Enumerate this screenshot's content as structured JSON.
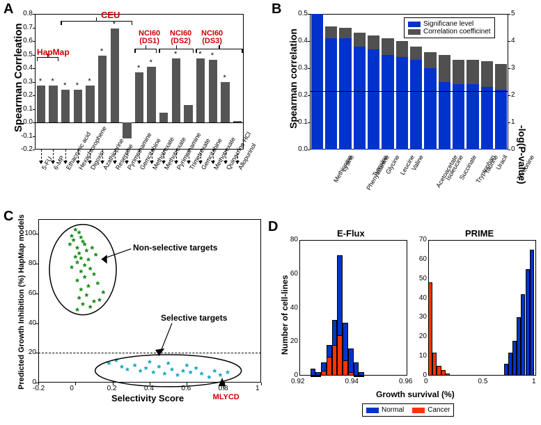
{
  "panels": {
    "A": "A",
    "B": "B",
    "C": "C",
    "D": "D"
  },
  "colors": {
    "gray_bar": "#555555",
    "blue": "#0033cc",
    "dark_gray": "#505050",
    "red_label": "#cc0000",
    "green_star": "#008000",
    "cyan_star": "#00a0c0",
    "orange_hist": "#ff3300"
  },
  "panelA": {
    "ylabel": "Spearman Corrleation",
    "ylim": [
      -0.2,
      0.8
    ],
    "yticks": [
      -0.2,
      -0.1,
      0,
      0.1,
      0.2,
      0.3,
      0.4,
      0.5,
      0.6,
      0.7,
      0.8
    ],
    "group_labels": {
      "HapMap": "HapMap",
      "CEU": "CEU",
      "DS1": "NCI60\n(DS1)",
      "DS2": "NCI60\n(DS2)",
      "DS3": "NCI60\n(DS3)"
    },
    "drugs": [
      "5-FU",
      "6-MP",
      "Ethacrynic acid",
      "Hexachlorophene",
      "Digoxin",
      "Azathioprine",
      "Reserpine",
      "Pyrimethamine",
      "Gemcitabine",
      "Methotrexate",
      "Methotrexate",
      "Pyrimethamine",
      "Trimetrexate",
      "Gemcitabine",
      "Methotrexate",
      "Quinacrine HCl",
      "Allopurinol"
    ],
    "values": [
      0.27,
      0.27,
      0.24,
      0.24,
      0.27,
      0.49,
      0.69,
      -0.12,
      0.37,
      0.41,
      0.07,
      0.47,
      0.13,
      0.47,
      0.46,
      0.3,
      0.01
    ],
    "stars": [
      1,
      1,
      1,
      1,
      1,
      1,
      1,
      0,
      1,
      1,
      0,
      1,
      0,
      1,
      1,
      1,
      0
    ]
  },
  "panelB": {
    "y1label": "Spearman correlation",
    "y2label": "-log(P-value)",
    "legend": [
      "Significane level",
      "Correlation coefficinet"
    ],
    "categories": [
      "Methionine",
      "Lysine",
      "Phenylalanine",
      "Tyrosine",
      "Glycine",
      "Leucine",
      "Valine",
      "Acetoacetate",
      "Isoleucine",
      "Succinate",
      "Tryptophan",
      "Taurine",
      "Uracil",
      "Threonine"
    ],
    "blue_values": [
      0.5,
      0.41,
      0.41,
      0.38,
      0.37,
      0.35,
      0.34,
      0.33,
      0.3,
      0.25,
      0.24,
      0.24,
      0.23,
      0.22
    ],
    "gray_values": [
      0.49,
      0.455,
      0.45,
      0.43,
      0.42,
      0.41,
      0.4,
      0.38,
      0.36,
      0.35,
      0.33,
      0.33,
      0.325,
      0.315
    ],
    "y1lim": [
      0,
      0.5
    ],
    "y1ticks": [
      0,
      0.1,
      0.2,
      0.3,
      0.4,
      0.5
    ],
    "y2lim": [
      0,
      5
    ],
    "y2ticks": [
      0,
      1,
      2,
      3,
      4,
      5
    ],
    "hline": 0.215
  },
  "panelC": {
    "xlabel": "Selectivity Score",
    "ylabel": "Predicted Growth Inhibition (%) HapMap models",
    "xlim": [
      -0.2,
      1
    ],
    "xticks": [
      -0.2,
      0,
      0.2,
      0.4,
      0.6,
      0.8,
      1
    ],
    "ylim": [
      0,
      110
    ],
    "yticks": [
      0,
      20,
      40,
      60,
      80,
      100
    ],
    "hline": 20,
    "ann1": "Non-selective targets",
    "ann2": "Selective targets",
    "ann3": "MLYCD",
    "green_points": [
      [
        -0.02,
        98
      ],
      [
        0.0,
        102
      ],
      [
        0.02,
        100
      ],
      [
        0.03,
        97
      ],
      [
        -0.01,
        95
      ],
      [
        0.04,
        94
      ],
      [
        0.05,
        92
      ],
      [
        0.01,
        90
      ],
      [
        0.06,
        88
      ],
      [
        0.02,
        86
      ],
      [
        0.0,
        84
      ],
      [
        0.03,
        83
      ],
      [
        0.07,
        82
      ],
      [
        0.01,
        80
      ],
      [
        0.05,
        78
      ],
      [
        -0.02,
        77
      ],
      [
        0.08,
        76
      ],
      [
        0.03,
        74
      ],
      [
        0.1,
        72
      ],
      [
        0.05,
        70
      ],
      [
        0.01,
        68
      ],
      [
        0.12,
        66
      ],
      [
        0.07,
        64
      ],
      [
        0.03,
        62
      ],
      [
        0.15,
        60
      ],
      [
        0.06,
        58
      ],
      [
        0.02,
        56
      ],
      [
        0.1,
        54
      ],
      [
        0.04,
        52
      ],
      [
        0.08,
        50
      ],
      [
        0.01,
        48
      ],
      [
        0.13,
        55
      ],
      [
        0.09,
        90
      ],
      [
        0.11,
        85
      ],
      [
        -0.03,
        92
      ]
    ],
    "cyan_points": [
      [
        0.18,
        12
      ],
      [
        0.22,
        14
      ],
      [
        0.25,
        10
      ],
      [
        0.28,
        8
      ],
      [
        0.32,
        11
      ],
      [
        0.35,
        7
      ],
      [
        0.38,
        9
      ],
      [
        0.42,
        6
      ],
      [
        0.45,
        10
      ],
      [
        0.48,
        5
      ],
      [
        0.52,
        8
      ],
      [
        0.55,
        4
      ],
      [
        0.58,
        7
      ],
      [
        0.62,
        6
      ],
      [
        0.65,
        9
      ],
      [
        0.68,
        5
      ],
      [
        0.72,
        3
      ],
      [
        0.75,
        7
      ],
      [
        0.78,
        4
      ],
      [
        0.82,
        6
      ],
      [
        0.4,
        13
      ],
      [
        0.5,
        12
      ],
      [
        0.6,
        11
      ]
    ],
    "mlycd": [
      0.79,
      3
    ]
  },
  "panelD": {
    "title1": "E-Flux",
    "title2": "PRIME",
    "ylabel": "Number of cell-lines",
    "xlabel": "Growth survival (%)",
    "legend": [
      "Normal",
      "Cancer"
    ],
    "eflux": {
      "xlim": [
        0.92,
        0.96
      ],
      "xticks": [
        0.92,
        0.94,
        0.96
      ],
      "ylim": [
        0,
        80
      ],
      "yticks": [
        0,
        20,
        40,
        60,
        80
      ],
      "bins": [
        0.924,
        0.926,
        0.928,
        0.93,
        0.932,
        0.934,
        0.936,
        0.938,
        0.94,
        0.942
      ],
      "normal": [
        4,
        2,
        8,
        18,
        33,
        71,
        31,
        16,
        8,
        2
      ],
      "cancer": [
        0,
        0,
        3,
        11,
        18,
        24,
        9,
        2,
        0,
        0
      ]
    },
    "prime": {
      "xlim": [
        0,
        1
      ],
      "xticks": [
        0,
        0.5,
        1
      ],
      "ylim": [
        0,
        70
      ],
      "yticks": [
        0,
        10,
        20,
        30,
        40,
        50,
        60,
        70
      ],
      "bins_n": [
        0.7,
        0.74,
        0.78,
        0.82,
        0.86,
        0.9,
        0.94
      ],
      "normal": [
        6,
        12,
        18,
        30,
        42,
        55,
        65
      ],
      "bins_c": [
        0.0,
        0.04,
        0.08,
        0.12,
        0.16
      ],
      "cancer": [
        48,
        12,
        5,
        3,
        1
      ]
    }
  }
}
